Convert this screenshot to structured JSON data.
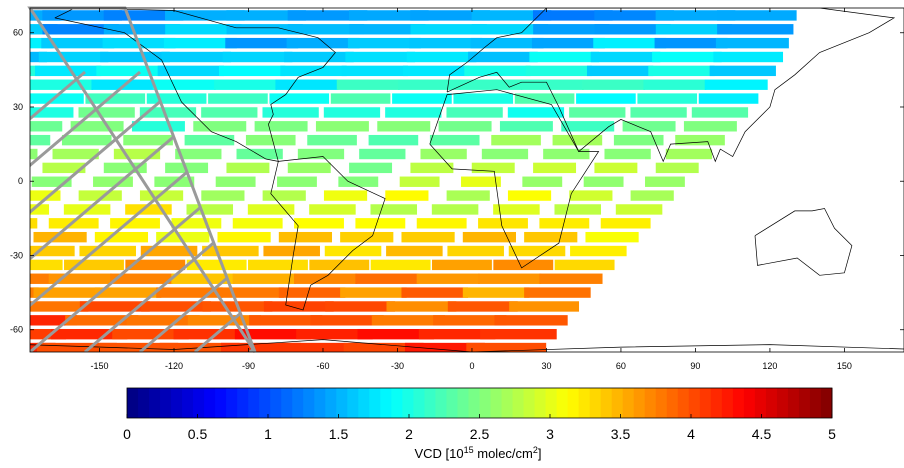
{
  "map": {
    "xlim": [
      -178,
      174
    ],
    "ylim": [
      -69,
      70
    ],
    "xticks": [
      -150,
      -120,
      -90,
      -60,
      -30,
      0,
      30,
      60,
      90,
      120,
      150
    ],
    "yticks": [
      -60,
      -30,
      0,
      30,
      60
    ]
  },
  "colorbar": {
    "colormap": "jet",
    "clim": [
      0,
      5
    ],
    "ticks": [
      0,
      0.5,
      1,
      1.5,
      2,
      2.5,
      3,
      3.5,
      4,
      4.5,
      5
    ],
    "label_parts": [
      {
        "text": "VCD [10"
      },
      {
        "text": "15",
        "sup": true
      },
      {
        "text": " molec/cm"
      },
      {
        "text": "2",
        "sup": true
      },
      {
        "text": "]"
      }
    ]
  }
}
